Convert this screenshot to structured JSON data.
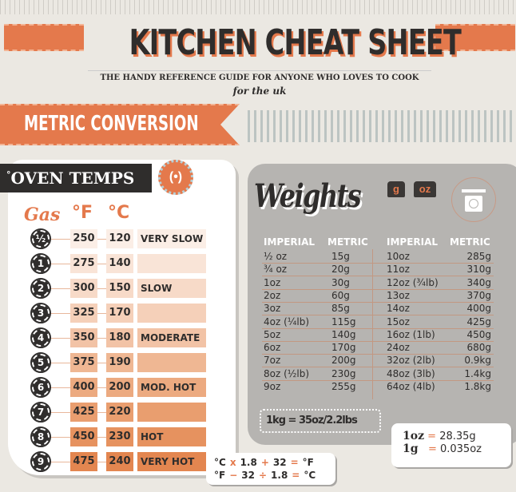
{
  "header": {
    "title": "KITCHEN CHEAT SHEET",
    "subtitle": "THE HANDY REFERENCE GUIDE FOR ANYONE WHO LOVES TO COOK",
    "region": "for the uk"
  },
  "section": {
    "title": "METRIC CONVERSION"
  },
  "oven": {
    "title": "OVEN TEMPS",
    "degree": "°",
    "headers": {
      "gas": "Gas",
      "f": "°F",
      "c": "°C"
    },
    "rows": [
      {
        "gas": "½",
        "f": "250",
        "c": "120",
        "desc": "VERY SLOW"
      },
      {
        "gas": "1",
        "f": "275",
        "c": "140",
        "desc": ""
      },
      {
        "gas": "2",
        "f": "300",
        "c": "150",
        "desc": "SLOW"
      },
      {
        "gas": "3",
        "f": "325",
        "c": "170",
        "desc": ""
      },
      {
        "gas": "4",
        "f": "350",
        "c": "180",
        "desc": "MODERATE"
      },
      {
        "gas": "5",
        "f": "375",
        "c": "190",
        "desc": ""
      },
      {
        "gas": "6",
        "f": "400",
        "c": "200",
        "desc": "MOD. HOT"
      },
      {
        "gas": "7",
        "f": "425",
        "c": "220",
        "desc": ""
      },
      {
        "gas": "8",
        "f": "450",
        "c": "230",
        "desc": "HOT"
      },
      {
        "gas": "9",
        "f": "475",
        "c": "240",
        "desc": "VERY HOT"
      }
    ],
    "row_colors": [
      "#fbeee6",
      "#f9e4d7",
      "#f7dac8",
      "#f5d0b9",
      "#f2c3a6",
      "#efb793",
      "#ecaa80",
      "#e99e6f",
      "#e6925f",
      "#e38650"
    ]
  },
  "weights": {
    "title": "Weights",
    "badges": [
      "g",
      "oz"
    ],
    "headers": [
      "IMPERIAL",
      "METRIC",
      "IMPERIAL",
      "METRIC"
    ],
    "left": [
      [
        "½ oz",
        "15g"
      ],
      [
        "¾ oz",
        "20g"
      ],
      [
        "1oz",
        "30g"
      ],
      [
        "2oz",
        "60g"
      ],
      [
        "3oz",
        "85g"
      ],
      [
        "4oz (¼lb)",
        "115g"
      ],
      [
        "5oz",
        "140g"
      ],
      [
        "6oz",
        "170g"
      ],
      [
        "7oz",
        "200g"
      ],
      [
        "8oz (½lb)",
        "230g"
      ],
      [
        "9oz",
        "255g"
      ]
    ],
    "right": [
      [
        "10oz",
        "285g"
      ],
      [
        "11oz",
        "310g"
      ],
      [
        "12oz (¾lb)",
        "340g"
      ],
      [
        "13oz",
        "370g"
      ],
      [
        "14oz",
        "400g"
      ],
      [
        "15oz",
        "425g"
      ],
      [
        "16oz (1lb)",
        "450g"
      ],
      [
        "24oz",
        "680g"
      ],
      [
        "32oz (2lb)",
        "0.9kg"
      ],
      [
        "48oz (3lb)",
        "1.4kg"
      ],
      [
        "64oz (4lb)",
        "1.8kg"
      ]
    ],
    "kg_note": "1kg = 35oz/2.2lbs",
    "oz_note": {
      "l1": "1oz",
      "v1": "28.35g",
      "l2": "1g",
      "v2": "0.035oz",
      "eq": "="
    }
  },
  "formula": {
    "line1": [
      "°C",
      "x",
      "1.8",
      "+",
      "32",
      "=",
      "°F"
    ],
    "line2": [
      "°F",
      "−",
      "32",
      "÷",
      "1.8",
      "=",
      "°C"
    ]
  },
  "colors": {
    "accent": "#e4794c",
    "dark": "#2f2d2c",
    "panel": "#b6b4b1",
    "background": "#ebe8e2"
  }
}
